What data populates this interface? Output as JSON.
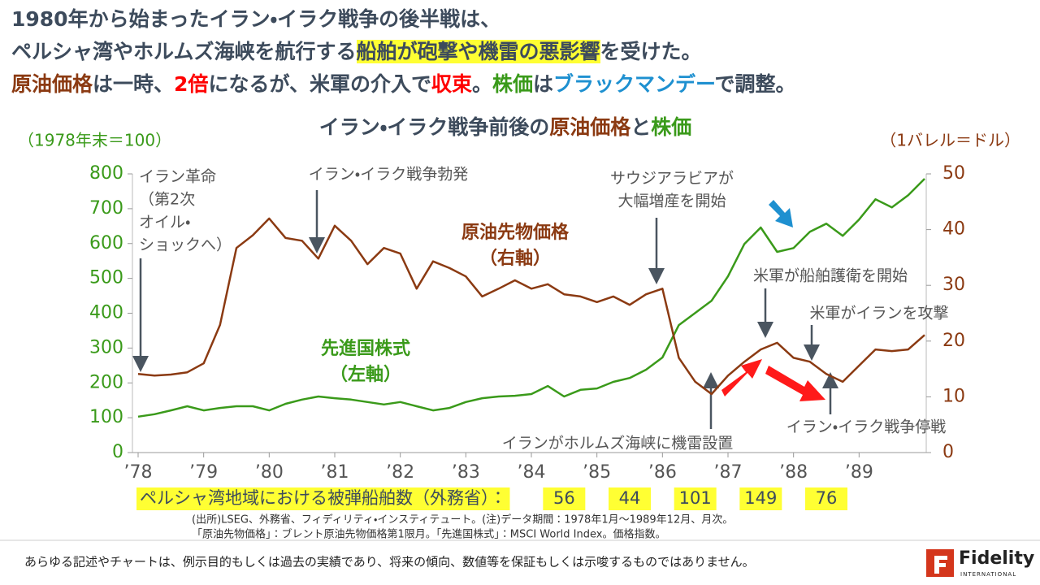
{
  "header": {
    "lines": [
      [
        {
          "text": "1980年から始まったイラン・イラク戦争の後半戦は、",
          "style": "plain"
        }
      ],
      [
        {
          "text": "ペルシャ湾やホルムズ海峡を航行する",
          "style": "plain"
        },
        {
          "text": "船舶が砲撃や機雷の悪影響",
          "style": "highlight"
        },
        {
          "text": "を受けた。",
          "style": "plain"
        }
      ],
      [
        {
          "text": "原油価格",
          "style": "oil"
        },
        {
          "text": "は一時、",
          "style": "plain"
        },
        {
          "text": "2倍",
          "style": "red"
        },
        {
          "text": "になるが、米軍の介入で",
          "style": "plain"
        },
        {
          "text": "収束",
          "style": "red"
        },
        {
          "text": "。",
          "style": "plain"
        },
        {
          "text": "株価",
          "style": "stock"
        },
        {
          "text": "は",
          "style": "plain"
        },
        {
          "text": "ブラックマンデー",
          "style": "blue"
        },
        {
          "text": "で調整。",
          "style": "plain"
        }
      ]
    ]
  },
  "chart_data": {
    "type": "line",
    "title": [
      {
        "text": "イラン・イラク戦争前後の",
        "style": "plain"
      },
      {
        "text": "原油価格",
        "style": "oil"
      },
      {
        "text": "と",
        "style": "plain"
      },
      {
        "text": "株価",
        "style": "stock"
      }
    ],
    "ylabel": "（1978年末＝100）",
    "y2label": "（1バレル＝ドル）",
    "xlim": [
      1978,
      1990
    ],
    "xticks": [
      {
        "value": 1978,
        "label": "’78"
      },
      {
        "value": 1979,
        "label": "’79"
      },
      {
        "value": 1980,
        "label": "’80"
      },
      {
        "value": 1981,
        "label": "’81"
      },
      {
        "value": 1982,
        "label": "’82"
      },
      {
        "value": 1983,
        "label": "’83"
      },
      {
        "value": 1984,
        "label": "’84"
      },
      {
        "value": 1985,
        "label": "’85"
      },
      {
        "value": 1986,
        "label": "’86"
      },
      {
        "value": 1987,
        "label": "’87"
      },
      {
        "value": 1988,
        "label": "’88"
      },
      {
        "value": 1989,
        "label": "’89"
      }
    ],
    "ylim": [
      0,
      800
    ],
    "yticks": [
      0,
      100,
      200,
      300,
      400,
      500,
      600,
      700,
      800
    ],
    "y2lim": [
      0,
      50
    ],
    "y2ticks": [
      0,
      10,
      20,
      30,
      40,
      50
    ],
    "grid": false,
    "x": [
      1978,
      1978.25,
      1978.5,
      1978.75,
      1979,
      1979.25,
      1979.5,
      1979.75,
      1980,
      1980.25,
      1980.5,
      1980.75,
      1981,
      1981.25,
      1981.5,
      1981.75,
      1982,
      1982.25,
      1982.5,
      1982.75,
      1983,
      1983.25,
      1983.5,
      1983.75,
      1984,
      1984.25,
      1984.5,
      1984.75,
      1985,
      1985.25,
      1985.5,
      1985.75,
      1986,
      1986.25,
      1986.5,
      1986.75,
      1987,
      1987.25,
      1987.5,
      1987.75,
      1988,
      1988.25,
      1988.5,
      1988.75,
      1989,
      1989.25,
      1989.5,
      1989.75,
      1990
    ],
    "series": [
      {
        "name": "先進国株式",
        "axis_label": "（左軸）",
        "color": "#3a9a1a",
        "axis": "y",
        "values": [
          103,
          110,
          121,
          133,
          121,
          128,
          133,
          133,
          121,
          140,
          152,
          161,
          156,
          152,
          145,
          138,
          145,
          133,
          121,
          128,
          145,
          156,
          161,
          163,
          168,
          191,
          161,
          180,
          184,
          203,
          214,
          238,
          273,
          366,
          401,
          436,
          506,
          599,
          646,
          576,
          587,
          634,
          657,
          622,
          669,
          727,
          704,
          739,
          786
        ]
      },
      {
        "name": "原油先物価格",
        "axis_label": "（右軸）",
        "color": "#8b3a12",
        "axis": "y2",
        "values": [
          14.1,
          13.8,
          14,
          14.4,
          16,
          22.9,
          36.7,
          39,
          42,
          38.5,
          38,
          34.8,
          40.7,
          38,
          33.8,
          36.7,
          35.7,
          29.4,
          34.3,
          33.1,
          31.6,
          28,
          29.4,
          30.9,
          29.4,
          30.2,
          28.4,
          28,
          27,
          28,
          26.5,
          28.4,
          29.4,
          17,
          12.7,
          10.5,
          13.8,
          16.3,
          18.5,
          19.7,
          17,
          16.3,
          14.1,
          12.7,
          15.6,
          18.5,
          18.2,
          18.5,
          21.1
        ]
      }
    ],
    "annotations": [
      {
        "lines": [
          "イラン革命",
          "（第2次",
          "オイル・",
          "ショックへ）"
        ]
      },
      {
        "lines": [
          "イラン・イラク戦争勃発"
        ]
      },
      {
        "lines": [
          "サウジアラビアが",
          "大幅増産を開始"
        ]
      },
      {
        "lines": [
          "米軍が船舶護衛を開始"
        ]
      },
      {
        "lines": [
          "米軍がイランを攻撃"
        ]
      },
      {
        "lines": [
          "イラン・イラク戦争停戦"
        ]
      },
      {
        "lines": [
          "イランがホルムズ海峡に機雷設置"
        ]
      }
    ],
    "ship_counts": {
      "label": "ペルシャ湾地域における被弾船舶数（外務省）：",
      "values": [
        56,
        44,
        101,
        149,
        76
      ]
    }
  },
  "notes": [
    "(出所)LSEG、外務省、フィディリティ・インスティテュート。(注)データ期間：1978年1月～1989年12月、月次。",
    "「原油先物価格」：ブレント原油先物価格第1限月。「先進国株式」：MSCI World Index。価格指数。"
  ],
  "footer": {
    "disclaimer": "あらゆる記述やチャートは、例示目的もしくは過去の実績であり、将来の傾向、数値等を保証もしくは示唆するものではありません。",
    "brand": "Fidelity",
    "brand_sub": "INTERNATIONAL"
  }
}
